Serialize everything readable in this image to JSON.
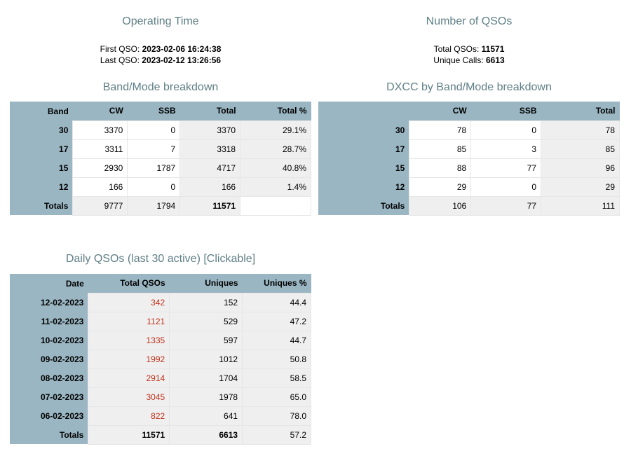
{
  "operating_time": {
    "title": "Operating Time",
    "first_label": "First QSO:",
    "first_value": "2023-02-06 16:24:38",
    "last_label": "Last QSO:",
    "last_value": "2023-02-12 13:26:56"
  },
  "qso_count": {
    "title": "Number of QSOs",
    "total_label": "Total QSOs:",
    "total_value": "11571",
    "unique_label": "Unique Calls:",
    "unique_value": "6613"
  },
  "band_mode": {
    "title": "Band/Mode breakdown",
    "headers": [
      "Band",
      "CW",
      "SSB",
      "Total",
      "Total %"
    ],
    "rows": [
      {
        "band": "30",
        "cw": "3370",
        "ssb": "0",
        "total": "3370",
        "pct": "29.1%"
      },
      {
        "band": "17",
        "cw": "3311",
        "ssb": "7",
        "total": "3318",
        "pct": "28.7%"
      },
      {
        "band": "15",
        "cw": "2930",
        "ssb": "1787",
        "total": "4717",
        "pct": "40.8%"
      },
      {
        "band": "12",
        "cw": "166",
        "ssb": "0",
        "total": "166",
        "pct": "1.4%"
      }
    ],
    "totals": {
      "label": "Totals",
      "cw": "9777",
      "ssb": "1794",
      "total": "11571",
      "pct": ""
    }
  },
  "dxcc": {
    "title": "DXCC by Band/Mode breakdown",
    "headers": [
      "",
      "CW",
      "SSB",
      "Total"
    ],
    "rows": [
      {
        "band": "30",
        "cw": "78",
        "ssb": "0",
        "total": "78"
      },
      {
        "band": "17",
        "cw": "85",
        "ssb": "3",
        "total": "85"
      },
      {
        "band": "15",
        "cw": "88",
        "ssb": "77",
        "total": "96"
      },
      {
        "band": "12",
        "cw": "29",
        "ssb": "0",
        "total": "29"
      }
    ],
    "totals": {
      "label": "Totals",
      "cw": "106",
      "ssb": "77",
      "total": "111"
    }
  },
  "daily": {
    "title": "Daily QSOs (last 30 active) [Clickable]",
    "headers": [
      "Date",
      "Total QSOs",
      "Uniques",
      "Uniques %"
    ],
    "rows": [
      {
        "date": "12-02-2023",
        "total": "342",
        "uniques": "152",
        "pct": "44.4"
      },
      {
        "date": "11-02-2023",
        "total": "1121",
        "uniques": "529",
        "pct": "47.2"
      },
      {
        "date": "10-02-2023",
        "total": "1335",
        "uniques": "597",
        "pct": "44.7"
      },
      {
        "date": "09-02-2023",
        "total": "1992",
        "uniques": "1012",
        "pct": "50.8"
      },
      {
        "date": "08-02-2023",
        "total": "2914",
        "uniques": "1704",
        "pct": "58.5"
      },
      {
        "date": "07-02-2023",
        "total": "3045",
        "uniques": "1978",
        "pct": "65.0"
      },
      {
        "date": "06-02-2023",
        "total": "822",
        "uniques": "641",
        "pct": "78.0"
      }
    ],
    "totals": {
      "label": "Totals",
      "total": "11571",
      "uniques": "6613",
      "pct": "57.2"
    }
  },
  "colors": {
    "header_bg": "#9ab6c2",
    "title": "#5f7f86",
    "link": "#c0321c",
    "shade": "#efefef"
  }
}
